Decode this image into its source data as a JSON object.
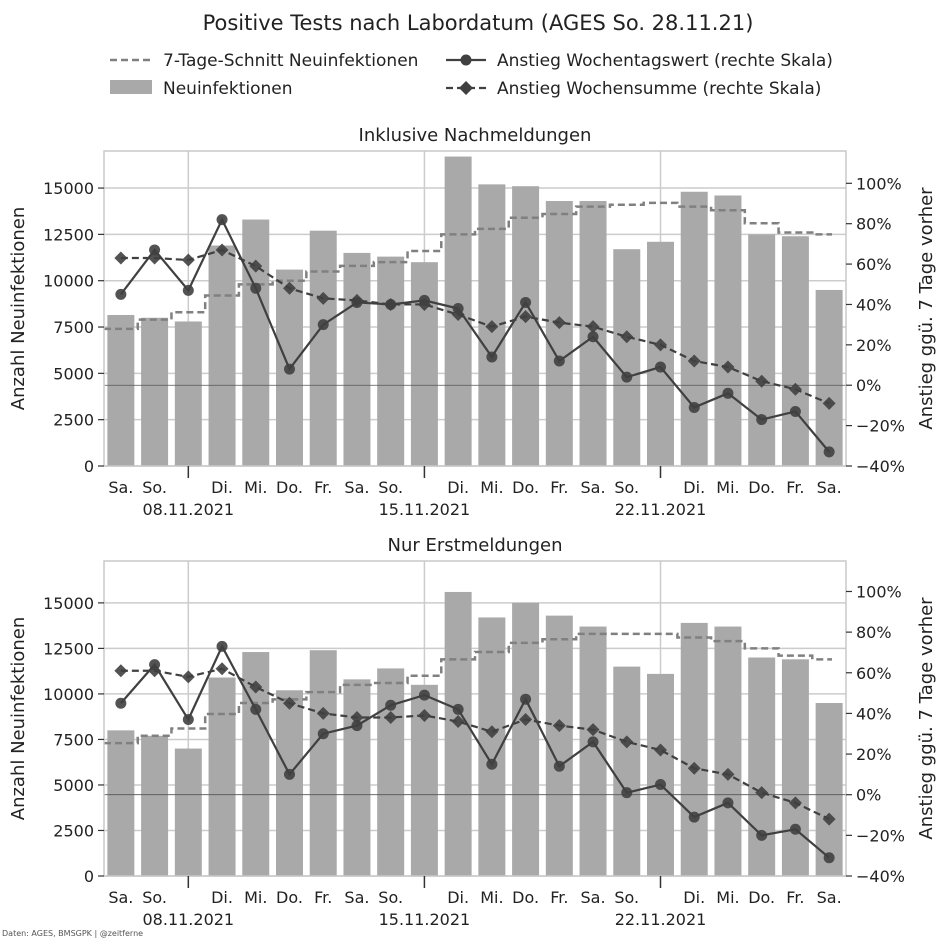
{
  "figure": {
    "title": "Positive Tests nach Labordatum (AGES So. 28.11.21)",
    "footer": "Daten: AGES, BMSGPK | @zeitferne"
  },
  "legend": {
    "items": [
      {
        "label": "7-Tage-Schnitt Neuinfektionen",
        "kind": "dashed-line"
      },
      {
        "label": "Neuinfektionen",
        "kind": "bar"
      },
      {
        "label": "Anstieg Wochentagswert (rechte Skala)",
        "kind": "line-circle"
      },
      {
        "label": "Anstieg Wochensumme (rechte Skala)",
        "kind": "dashed-diamond"
      }
    ]
  },
  "colors": {
    "bar": "#a9a9a9",
    "avg_line": "#808080",
    "growth_line": "#404040",
    "grid": "#cccccc",
    "zero_line": "#555555"
  },
  "chart_data": [
    {
      "type": "bar",
      "title": "Inklusive Nachmeldungen",
      "ylabel": "Anzahl Neuinfektionen",
      "y2label": "Anstieg ggü. 7 Tage vorher",
      "categories": [
        "Sa.",
        "So.",
        "Mo.",
        "Di.",
        "Mi.",
        "Do.",
        "Fr.",
        "Sa.",
        "So.",
        "Mo.",
        "Di.",
        "Mi.",
        "Do.",
        "Fr.",
        "Sa.",
        "So.",
        "Mo.",
        "Di.",
        "Mi.",
        "Do.",
        "Fr.",
        "Sa."
      ],
      "tick_labels": [
        "Sa.",
        "So.",
        "",
        "Di.",
        "Mi.",
        "Do.",
        "Fr.",
        "Sa.",
        "So.",
        "",
        "Di.",
        "Mi.",
        "Do.",
        "Fr.",
        "Sa.",
        "So.",
        "",
        "Di.",
        "Mi.",
        "Do.",
        "Fr.",
        "Sa."
      ],
      "date_labels": [
        {
          "index": 2,
          "label": "08.11.2021"
        },
        {
          "index": 9,
          "label": "15.11.2021"
        },
        {
          "index": 16,
          "label": "22.11.2021"
        }
      ],
      "ylim": [
        0,
        17000
      ],
      "yticks": [
        0,
        2500,
        5000,
        7500,
        10000,
        12500,
        15000
      ],
      "y2lim": [
        -0.4,
        1.16
      ],
      "y2ticks": [
        -0.4,
        -0.2,
        0,
        0.2,
        0.4,
        0.6,
        0.8,
        1.0
      ],
      "y2tick_labels": [
        "−40%",
        "−20%",
        "0%",
        "20%",
        "40%",
        "60%",
        "80%",
        "100%"
      ],
      "series": [
        {
          "name": "Neuinfektionen",
          "type": "bar",
          "values": [
            8150,
            8000,
            7800,
            11900,
            13300,
            10600,
            12700,
            11500,
            11300,
            11000,
            16700,
            15200,
            15100,
            14300,
            14300,
            11700,
            12100,
            14800,
            14600,
            12500,
            12400,
            9500
          ]
        },
        {
          "name": "7-Tage-Schnitt Neuinfektionen",
          "type": "step",
          "axis": "left",
          "values": [
            7400,
            7900,
            8300,
            9200,
            9800,
            10000,
            10500,
            10800,
            11000,
            11600,
            12500,
            12800,
            13400,
            13600,
            14000,
            14100,
            14200,
            14000,
            13800,
            13100,
            12600,
            12500
          ]
        },
        {
          "name": "Anstieg Wochentagswert (rechte Skala)",
          "type": "line",
          "axis": "right",
          "values": [
            0.45,
            0.67,
            0.47,
            0.82,
            0.48,
            0.08,
            0.3,
            0.41,
            0.4,
            0.42,
            0.38,
            0.14,
            0.41,
            0.12,
            0.24,
            0.04,
            0.09,
            -0.11,
            -0.04,
            -0.17,
            -0.13,
            -0.33
          ]
        },
        {
          "name": "Anstieg Wochensumme (rechte Skala)",
          "type": "line",
          "axis": "right",
          "values": [
            0.63,
            0.63,
            0.62,
            0.67,
            0.59,
            0.48,
            0.43,
            0.42,
            0.4,
            0.4,
            0.35,
            0.29,
            0.34,
            0.31,
            0.29,
            0.24,
            0.2,
            0.12,
            0.09,
            0.02,
            -0.02,
            -0.09
          ]
        }
      ]
    },
    {
      "type": "bar",
      "title": "Nur Erstmeldungen",
      "ylabel": "Anzahl Neuinfektionen",
      "y2label": "Anstieg ggü. 7 Tage vorher",
      "categories": [
        "Sa.",
        "So.",
        "Mo.",
        "Di.",
        "Mi.",
        "Do.",
        "Fr.",
        "Sa.",
        "So.",
        "Mo.",
        "Di.",
        "Mi.",
        "Do.",
        "Fr.",
        "Sa.",
        "So.",
        "Mo.",
        "Di.",
        "Mi.",
        "Do.",
        "Fr.",
        "Sa."
      ],
      "tick_labels": [
        "Sa.",
        "So.",
        "",
        "Di.",
        "Mi.",
        "Do.",
        "Fr.",
        "Sa.",
        "So.",
        "",
        "Di.",
        "Mi.",
        "Do.",
        "Fr.",
        "Sa.",
        "So.",
        "",
        "Di.",
        "Mi.",
        "Do.",
        "Fr.",
        "Sa."
      ],
      "date_labels": [
        {
          "index": 2,
          "label": "08.11.2021"
        },
        {
          "index": 9,
          "label": "15.11.2021"
        },
        {
          "index": 16,
          "label": "22.11.2021"
        }
      ],
      "ylim": [
        0,
        17300
      ],
      "yticks": [
        0,
        2500,
        5000,
        7500,
        10000,
        12500,
        15000
      ],
      "y2lim": [
        -0.4,
        1.15
      ],
      "y2ticks": [
        -0.4,
        -0.2,
        0,
        0.2,
        0.4,
        0.6,
        0.8,
        1.0
      ],
      "y2tick_labels": [
        "−40%",
        "−20%",
        "0%",
        "20%",
        "40%",
        "60%",
        "80%",
        "100%"
      ],
      "series": [
        {
          "name": "Neuinfektionen",
          "type": "bar",
          "values": [
            8000,
            7700,
            7000,
            10900,
            12300,
            10200,
            12400,
            10800,
            11400,
            10500,
            15600,
            14200,
            15000,
            14300,
            13700,
            11500,
            11100,
            13900,
            13700,
            12000,
            11900,
            9500
          ]
        },
        {
          "name": "7-Tage-Schnitt Neuinfektionen",
          "type": "step",
          "axis": "left",
          "values": [
            7300,
            7700,
            8100,
            8900,
            9500,
            9700,
            10100,
            10500,
            10600,
            11000,
            11900,
            12300,
            12800,
            13000,
            13300,
            13300,
            13300,
            13100,
            12900,
            12500,
            12100,
            11900
          ]
        },
        {
          "name": "Anstieg Wochentagswert (rechte Skala)",
          "type": "line",
          "axis": "right",
          "values": [
            0.45,
            0.64,
            0.37,
            0.73,
            0.42,
            0.1,
            0.3,
            0.34,
            0.44,
            0.49,
            0.42,
            0.15,
            0.47,
            0.14,
            0.26,
            0.01,
            0.05,
            -0.11,
            -0.04,
            -0.2,
            -0.17,
            -0.31
          ]
        },
        {
          "name": "Anstieg Wochensumme (rechte Skala)",
          "type": "line",
          "axis": "right",
          "values": [
            0.61,
            0.61,
            0.58,
            0.62,
            0.53,
            0.45,
            0.4,
            0.38,
            0.38,
            0.39,
            0.36,
            0.31,
            0.37,
            0.34,
            0.32,
            0.26,
            0.22,
            0.13,
            0.1,
            0.01,
            -0.04,
            -0.12
          ]
        }
      ]
    }
  ]
}
